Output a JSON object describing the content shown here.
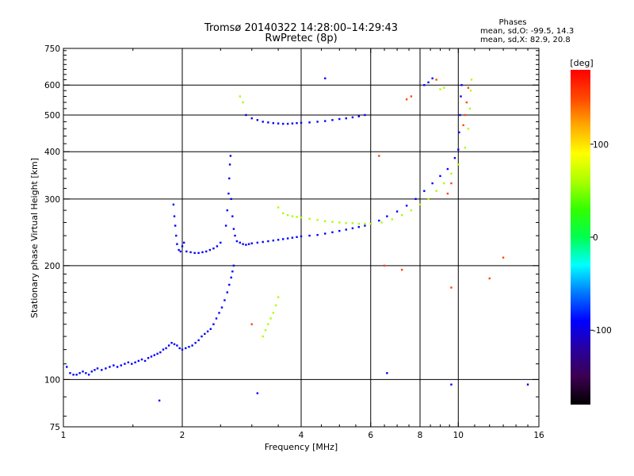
{
  "chart_data": {
    "type": "scatter",
    "title": "Tromsø 20140322 14:28:00–14:29:43",
    "subtitle": "RwPretec (8p)",
    "xlabel": "Frequency [MHz]",
    "ylabel": "Stationary phase Virtual Height [km]",
    "x_scale": "log",
    "y_scale": "log",
    "xlim": [
      1,
      16
    ],
    "ylim": [
      75,
      750
    ],
    "x_ticks": [
      1,
      2,
      4,
      6,
      8,
      10,
      16
    ],
    "x_tick_labels": [
      "1",
      "2",
      "4",
      "6",
      "8",
      "10",
      "16"
    ],
    "y_ticks": [
      75,
      100,
      200,
      300,
      400,
      500,
      600,
      750
    ],
    "y_tick_labels": [
      "75",
      "100",
      "200",
      "300",
      "400",
      "500",
      "600",
      "750"
    ],
    "x_grid": [
      2,
      4,
      6,
      8,
      10
    ],
    "y_grid": [
      100,
      200,
      300,
      400,
      500,
      600
    ],
    "grid": true,
    "stats": {
      "heading": "Phases",
      "line_o": "mean, sd,O: -99.5, 14.3",
      "line_x": "mean, sd,X:  82.9, 20.8"
    },
    "colorbar": {
      "unit": "[deg]",
      "range": [
        -180,
        180
      ],
      "ticks": [
        100,
        0,
        -100
      ],
      "tick_labels": [
        "100",
        "0",
        "-100"
      ],
      "colors": [
        "#000000",
        "#3c0050",
        "#2800a0",
        "#0000ff",
        "#0078ff",
        "#00ffff",
        "#00ff50",
        "#32ff00",
        "#aaff00",
        "#ffff00",
        "#ffaa00",
        "#ff4600",
        "#ff0000"
      ]
    },
    "series": [
      {
        "phase": -100,
        "points": [
          [
            1.02,
            108
          ],
          [
            1.04,
            104
          ],
          [
            1.06,
            103
          ],
          [
            1.08,
            103
          ],
          [
            1.1,
            104
          ],
          [
            1.12,
            105
          ],
          [
            1.14,
            104
          ],
          [
            1.16,
            103
          ],
          [
            1.18,
            105
          ],
          [
            1.2,
            106
          ],
          [
            1.22,
            107
          ],
          [
            1.25,
            106
          ],
          [
            1.28,
            107
          ],
          [
            1.31,
            108
          ],
          [
            1.34,
            109
          ],
          [
            1.37,
            108
          ],
          [
            1.4,
            109
          ],
          [
            1.43,
            110
          ],
          [
            1.46,
            111
          ],
          [
            1.49,
            110
          ],
          [
            1.52,
            111
          ],
          [
            1.55,
            112
          ],
          [
            1.58,
            113
          ],
          [
            1.61,
            112
          ],
          [
            1.64,
            114
          ],
          [
            1.67,
            115
          ],
          [
            1.7,
            116
          ],
          [
            1.73,
            117
          ],
          [
            1.76,
            118
          ],
          [
            1.79,
            120
          ],
          [
            1.82,
            121
          ],
          [
            1.85,
            123
          ],
          [
            1.88,
            125
          ],
          [
            1.91,
            124
          ],
          [
            1.94,
            123
          ],
          [
            1.97,
            121
          ],
          [
            2.0,
            120
          ],
          [
            2.04,
            121
          ],
          [
            2.08,
            122
          ],
          [
            2.12,
            123
          ],
          [
            2.16,
            125
          ],
          [
            2.2,
            127
          ],
          [
            2.24,
            130
          ],
          [
            2.28,
            132
          ],
          [
            2.32,
            134
          ],
          [
            2.36,
            136
          ],
          [
            2.4,
            140
          ],
          [
            2.44,
            145
          ],
          [
            2.48,
            150
          ],
          [
            2.52,
            155
          ],
          [
            2.56,
            162
          ],
          [
            2.6,
            170
          ],
          [
            2.63,
            178
          ],
          [
            2.66,
            186
          ],
          [
            2.68,
            193
          ],
          [
            2.7,
            200
          ],
          [
            1.9,
            290
          ],
          [
            1.91,
            270
          ],
          [
            1.92,
            255
          ],
          [
            1.93,
            240
          ],
          [
            1.94,
            228
          ],
          [
            1.96,
            220
          ],
          [
            1.98,
            218
          ],
          [
            2.0,
            225
          ],
          [
            2.02,
            230
          ],
          [
            2.05,
            218
          ],
          [
            2.1,
            217
          ],
          [
            2.15,
            216
          ],
          [
            2.2,
            216
          ],
          [
            2.25,
            217
          ],
          [
            2.3,
            218
          ],
          [
            2.35,
            220
          ],
          [
            2.4,
            222
          ],
          [
            2.45,
            225
          ],
          [
            2.5,
            230
          ],
          [
            2.58,
            255
          ],
          [
            2.6,
            280
          ],
          [
            2.62,
            310
          ],
          [
            2.63,
            340
          ],
          [
            2.64,
            370
          ],
          [
            2.65,
            390
          ],
          [
            2.66,
            300
          ],
          [
            2.68,
            270
          ],
          [
            2.7,
            250
          ],
          [
            2.72,
            240
          ],
          [
            2.75,
            232
          ],
          [
            2.8,
            230
          ],
          [
            2.85,
            228
          ],
          [
            2.9,
            227
          ],
          [
            2.95,
            228
          ],
          [
            3.0,
            229
          ],
          [
            3.1,
            230
          ],
          [
            3.2,
            231
          ],
          [
            3.3,
            232
          ],
          [
            3.4,
            233
          ],
          [
            3.5,
            234
          ],
          [
            3.6,
            235
          ],
          [
            3.7,
            236
          ],
          [
            3.8,
            237
          ],
          [
            3.9,
            238
          ],
          [
            4.0,
            239
          ],
          [
            4.2,
            240
          ],
          [
            4.4,
            241
          ],
          [
            4.6,
            243
          ],
          [
            4.8,
            245
          ],
          [
            5.0,
            247
          ],
          [
            5.2,
            249
          ],
          [
            5.4,
            251
          ],
          [
            5.6,
            253
          ],
          [
            5.8,
            255
          ],
          [
            6.0,
            258
          ],
          [
            6.3,
            263
          ],
          [
            6.6,
            270
          ],
          [
            7.0,
            278
          ],
          [
            7.4,
            288
          ],
          [
            7.8,
            300
          ],
          [
            8.2,
            315
          ],
          [
            8.6,
            330
          ],
          [
            9.0,
            345
          ],
          [
            9.4,
            360
          ],
          [
            9.8,
            385
          ],
          [
            10.0,
            405
          ],
          [
            2.9,
            500
          ],
          [
            3.0,
            490
          ],
          [
            3.1,
            485
          ],
          [
            3.2,
            480
          ],
          [
            3.3,
            478
          ],
          [
            3.4,
            476
          ],
          [
            3.5,
            475
          ],
          [
            3.6,
            474
          ],
          [
            3.7,
            474
          ],
          [
            3.8,
            475
          ],
          [
            3.9,
            476
          ],
          [
            4.0,
            477
          ],
          [
            4.2,
            478
          ],
          [
            4.4,
            480
          ],
          [
            4.6,
            482
          ],
          [
            4.8,
            485
          ],
          [
            5.0,
            488
          ],
          [
            5.2,
            490
          ],
          [
            5.4,
            493
          ],
          [
            5.6,
            496
          ],
          [
            5.8,
            500
          ],
          [
            10.05,
            450
          ],
          [
            10.1,
            500
          ],
          [
            10.15,
            560
          ],
          [
            10.2,
            600
          ],
          [
            8.2,
            600
          ],
          [
            8.4,
            610
          ],
          [
            8.6,
            625
          ],
          [
            1.75,
            88
          ],
          [
            3.1,
            92
          ],
          [
            6.6,
            104
          ],
          [
            9.6,
            97
          ],
          [
            15.0,
            97
          ],
          [
            4.6,
            625
          ]
        ]
      },
      {
        "phase": 60,
        "points": [
          [
            3.2,
            130
          ],
          [
            3.25,
            135
          ],
          [
            3.3,
            140
          ],
          [
            3.35,
            145
          ],
          [
            3.4,
            150
          ],
          [
            3.45,
            157
          ],
          [
            3.5,
            165
          ],
          [
            2.8,
            560
          ],
          [
            2.85,
            540
          ],
          [
            3.5,
            285
          ],
          [
            3.6,
            275
          ],
          [
            3.7,
            272
          ],
          [
            3.8,
            270
          ],
          [
            3.9,
            269
          ],
          [
            4.0,
            268
          ],
          [
            4.2,
            266
          ],
          [
            4.4,
            264
          ],
          [
            4.6,
            262
          ],
          [
            4.8,
            261
          ],
          [
            5.0,
            260
          ],
          [
            5.2,
            259
          ],
          [
            5.4,
            259
          ],
          [
            5.6,
            258
          ],
          [
            5.8,
            258
          ],
          [
            6.0,
            258
          ],
          [
            6.4,
            260
          ],
          [
            6.8,
            265
          ],
          [
            7.2,
            272
          ],
          [
            7.6,
            280
          ],
          [
            8.0,
            290
          ],
          [
            8.4,
            300
          ],
          [
            8.8,
            315
          ],
          [
            9.2,
            330
          ],
          [
            9.6,
            350
          ],
          [
            10.0,
            370
          ],
          [
            10.4,
            410
          ],
          [
            10.6,
            460
          ],
          [
            10.7,
            520
          ],
          [
            10.75,
            580
          ],
          [
            10.8,
            620
          ],
          [
            9.0,
            585
          ],
          [
            9.2,
            590
          ]
        ]
      },
      {
        "phase": 150,
        "points": [
          [
            10.3,
            470
          ],
          [
            10.4,
            500
          ],
          [
            10.5,
            540
          ],
          [
            10.6,
            590
          ],
          [
            9.4,
            310
          ],
          [
            9.6,
            330
          ],
          [
            7.4,
            550
          ],
          [
            7.6,
            560
          ],
          [
            8.8,
            620
          ],
          [
            6.5,
            200
          ],
          [
            7.2,
            195
          ],
          [
            12.0,
            185
          ],
          [
            13.0,
            210
          ],
          [
            9.6,
            175
          ],
          [
            6.3,
            390
          ],
          [
            3.0,
            140
          ]
        ]
      }
    ]
  }
}
